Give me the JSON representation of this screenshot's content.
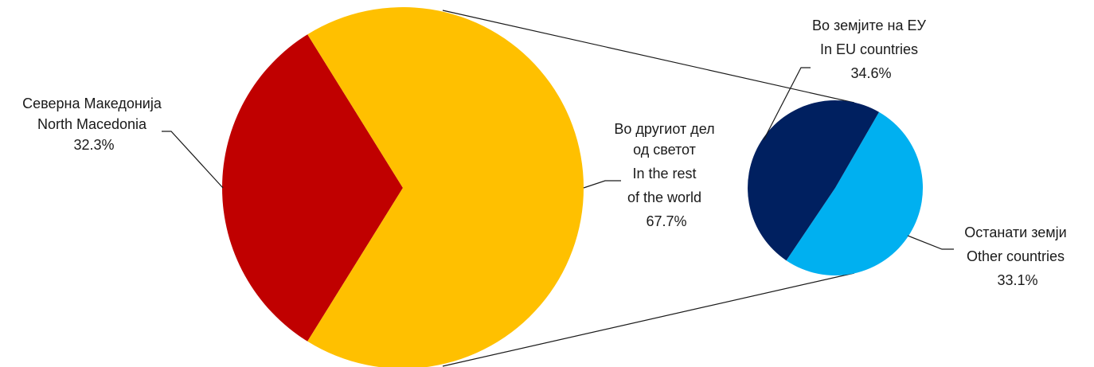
{
  "chart_data": {
    "type": "pie",
    "subtype": "pie-of-pie",
    "main_pie": {
      "slices": [
        {
          "label_mk": "Северна Македонија",
          "label_en": "North Macedonia",
          "value_label": "32.3%",
          "value": 32.3,
          "color": "#C00000"
        },
        {
          "label_mk": "Во другиот дел од светот",
          "label_en": "In the rest of the world",
          "value_label": "67.7%",
          "value": 67.7,
          "color": "#FFC000"
        }
      ]
    },
    "secondary_pie": {
      "slices": [
        {
          "label_mk": "Во земјите на ЕУ",
          "label_en": "In EU countries",
          "value_label": "34.6%",
          "value": 34.6,
          "color": "#002060"
        },
        {
          "label_mk": "Останати земји",
          "label_en": "Other countries",
          "value_label": "33.1%",
          "value": 33.1,
          "color": "#00B0F0"
        }
      ]
    },
    "labels": {
      "nm": [
        "Северна Македонија",
        "North Macedonia",
        "32.3%"
      ],
      "rest": [
        "Во другиот дел",
        "од светот",
        "In the rest",
        "of the world",
        "67.7%"
      ],
      "eu": [
        "Во земјите на ЕУ",
        "In EU countries",
        "34.6%"
      ],
      "other": [
        "Останати земји",
        "Other countries",
        "33.1%"
      ]
    }
  }
}
